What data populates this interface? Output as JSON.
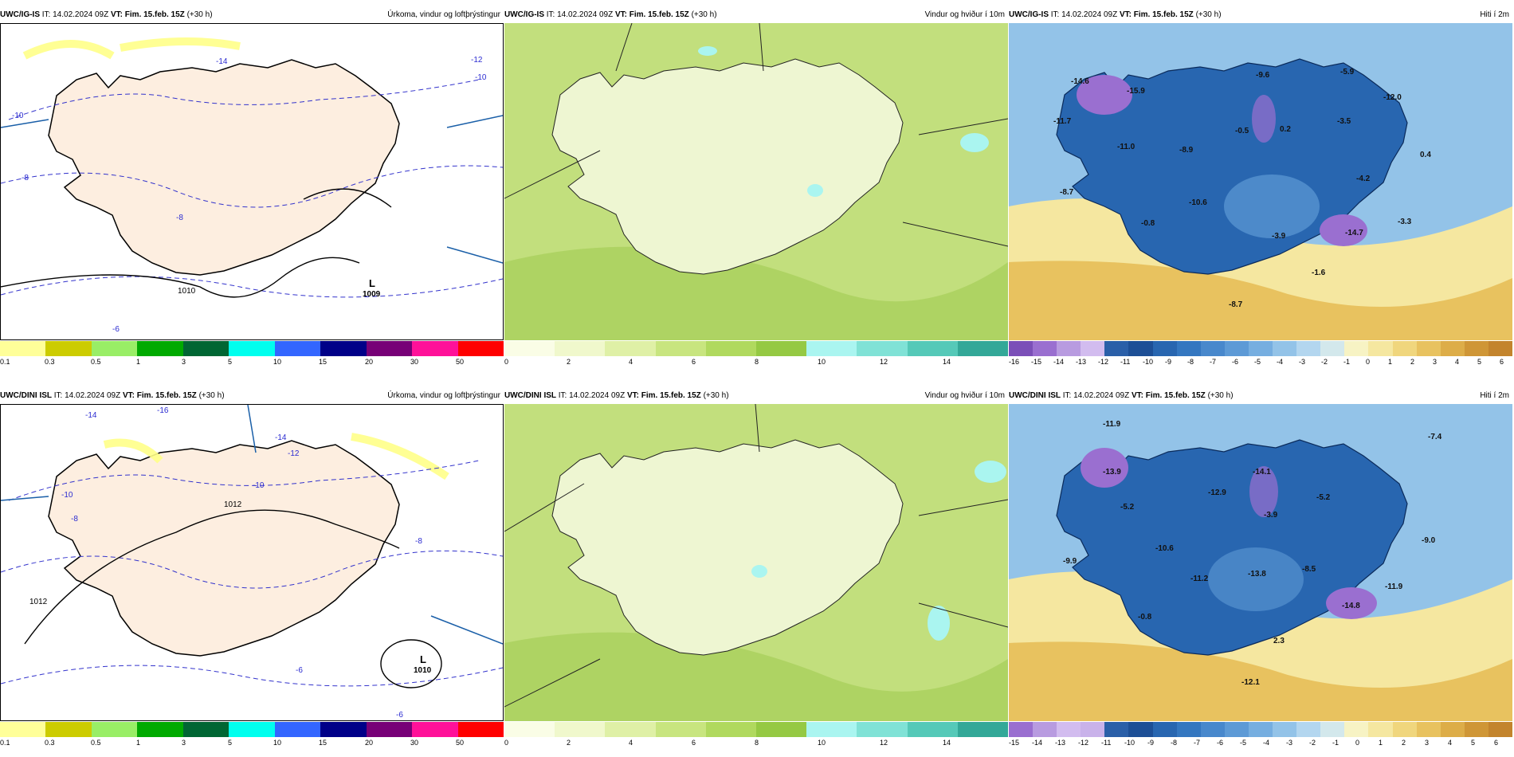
{
  "panels": [
    {
      "id": "top-precip",
      "model": "UWC/IG-IS",
      "it": "IT: 14.02.2024 09Z",
      "vt": "VT: Fim. 15.feb. 15Z",
      "lead": "(+30 h)",
      "title": "Úrkoma, vindur og loftþrýstingur",
      "colorbar": {
        "colors": [
          "#ffff99",
          "#cccc00",
          "#99ee66",
          "#00aa00",
          "#006633",
          "#00ffee",
          "#3366ff",
          "#000088",
          "#770077",
          "#ff1199",
          "#ff0000"
        ],
        "ticks": [
          "0.1",
          "0.3",
          "0.5",
          "1",
          "3",
          "5",
          "10",
          "15",
          "20",
          "30",
          "50"
        ]
      },
      "low": {
        "letter": "L",
        "pressure": "1009"
      },
      "isobar_labels": [
        "-14",
        "-12",
        "-10",
        "-10",
        "-8",
        "-8",
        "-6",
        "1010"
      ]
    },
    {
      "id": "top-wind",
      "model": "UWC/IG-IS",
      "it": "IT: 14.02.2024 09Z",
      "vt": "VT: Fim. 15.feb. 15Z",
      "lead": "(+30 h)",
      "title": "Vindur og hviður í 10m",
      "colorbar": {
        "colors": [
          "#fafde6",
          "#f0f8cc",
          "#dff0a6",
          "#c8e57f",
          "#b0d95e",
          "#95c943",
          "#aaf5f0",
          "#80e2d6",
          "#55c9b8",
          "#33a898"
        ],
        "ticks": [
          "0",
          "2",
          "4",
          "6",
          "8",
          "10",
          "12",
          "14"
        ]
      }
    },
    {
      "id": "top-temp",
      "model": "UWC/IG-IS",
      "it": "IT: 14.02.2024 09Z",
      "vt": "VT: Fim. 15.feb. 15Z",
      "lead": "(+30 h)",
      "title": "Hiti í 2m",
      "colorbar": {
        "colors": [
          "#7b4fb8",
          "#9a6fd0",
          "#b89be0",
          "#d2bcef",
          "#2a5fa8",
          "#1d4f96",
          "#2866b0",
          "#3477c0",
          "#4888cc",
          "#5d9ad6",
          "#76aee0",
          "#93c3e8",
          "#b3d6ef",
          "#d3e8ec",
          "#f7f3c4",
          "#f5e7a0",
          "#f0d67d",
          "#e8c25f",
          "#ddad48",
          "#cf9636",
          "#c3842d"
        ],
        "ticks": [
          "-16",
          "-15",
          "-14",
          "-13",
          "-12",
          "-11",
          "-10",
          "-9",
          "-8",
          "-7",
          "-6",
          "-5",
          "-4",
          "-3",
          "-2",
          "-1",
          "0",
          "1",
          "2",
          "3",
          "4",
          "5",
          "6"
        ]
      },
      "temps": [
        "-14.6",
        "-15.9",
        "-11.7",
        "-11.0",
        "-8.9",
        "-9.6",
        "-5.9",
        "-12.0",
        "-0.5",
        "0.2",
        "-3.5",
        "0.4",
        "-4.2",
        "-8.7",
        "-10.6",
        "-0.8",
        "-3.9",
        "-14.7",
        "-3.3",
        "-1.6",
        "-8.7"
      ]
    },
    {
      "id": "bottom-precip",
      "model": "UWC/DINI ISL",
      "it": "IT: 14.02.2024 09Z",
      "vt": "VT: Fim. 15.feb. 15Z",
      "lead": "(+30 h)",
      "title": "Úrkoma, vindur og loftþrýstingur",
      "colorbar": {
        "colors": [
          "#ffff99",
          "#cccc00",
          "#99ee66",
          "#00aa00",
          "#006633",
          "#00ffee",
          "#3366ff",
          "#000088",
          "#770077",
          "#ff1199",
          "#ff0000"
        ],
        "ticks": [
          "0.1",
          "0.3",
          "0.5",
          "1",
          "3",
          "5",
          "10",
          "15",
          "20",
          "30",
          "50"
        ]
      },
      "low": {
        "letter": "L",
        "pressure": "1010"
      },
      "isobar_labels": [
        "-14",
        "-16",
        "-14",
        "-12",
        "-10",
        "-10",
        "-8",
        "-8",
        "-6",
        "-6",
        "1012",
        "1012"
      ]
    },
    {
      "id": "bottom-wind",
      "model": "UWC/DINI ISL",
      "it": "IT: 14.02.2024 09Z",
      "vt": "VT: Fim. 15.feb. 15Z",
      "lead": "(+30 h)",
      "title": "Vindur og hviður í 10m",
      "colorbar": {
        "colors": [
          "#fafde6",
          "#f0f8cc",
          "#dff0a6",
          "#c8e57f",
          "#b0d95e",
          "#95c943",
          "#aaf5f0",
          "#80e2d6",
          "#55c9b8",
          "#33a898"
        ],
        "ticks": [
          "0",
          "2",
          "4",
          "6",
          "8",
          "10",
          "12",
          "14"
        ]
      }
    },
    {
      "id": "bottom-temp",
      "model": "UWC/DINI ISL",
      "it": "IT: 14.02.2024 09Z",
      "vt": "VT: Fim. 15.feb. 15Z",
      "lead": "(+30 h)",
      "title": "Hiti í 2m",
      "colorbar": {
        "colors": [
          "#9a6fd0",
          "#b89be0",
          "#d2bcef",
          "#c9b2ea",
          "#2a5fa8",
          "#1d4f96",
          "#2866b0",
          "#3477c0",
          "#4888cc",
          "#5d9ad6",
          "#76aee0",
          "#93c3e8",
          "#b3d6ef",
          "#d3e8ec",
          "#f7f3c4",
          "#f5e7a0",
          "#f0d67d",
          "#e8c25f",
          "#ddad48",
          "#cf9636",
          "#c3842d"
        ],
        "ticks": [
          "-15",
          "-14",
          "-13",
          "-12",
          "-11",
          "-10",
          "-9",
          "-8",
          "-7",
          "-6",
          "-5",
          "-4",
          "-3",
          "-2",
          "-1",
          "0",
          "1",
          "2",
          "3",
          "4",
          "5",
          "6"
        ]
      },
      "temps": [
        "-11.9",
        "-7.4",
        "-13.9",
        "-14.1",
        "-12.9",
        "-5.2",
        "-3.9",
        "-5.2",
        "-9.9",
        "-10.6",
        "-11.2",
        "-13.8",
        "-8.5",
        "-9.0",
        "-11.9",
        "-0.8",
        "-14.8",
        "2.3",
        "-12.1"
      ]
    }
  ]
}
